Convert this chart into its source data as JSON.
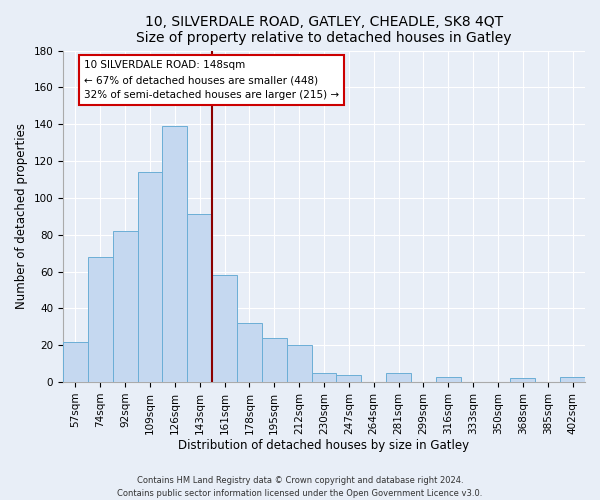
{
  "title": "10, SILVERDALE ROAD, GATLEY, CHEADLE, SK8 4QT",
  "subtitle": "Size of property relative to detached houses in Gatley",
  "xlabel": "Distribution of detached houses by size in Gatley",
  "ylabel": "Number of detached properties",
  "bar_labels": [
    "57sqm",
    "74sqm",
    "92sqm",
    "109sqm",
    "126sqm",
    "143sqm",
    "161sqm",
    "178sqm",
    "195sqm",
    "212sqm",
    "230sqm",
    "247sqm",
    "264sqm",
    "281sqm",
    "299sqm",
    "316sqm",
    "333sqm",
    "350sqm",
    "368sqm",
    "385sqm",
    "402sqm"
  ],
  "bar_values": [
    22,
    68,
    82,
    114,
    139,
    91,
    58,
    32,
    24,
    20,
    5,
    4,
    0,
    5,
    0,
    3,
    0,
    0,
    2,
    0,
    3
  ],
  "bar_color": "#c5d8f0",
  "bar_edge_color": "#6baed6",
  "annotation_title": "10 SILVERDALE ROAD: 148sqm",
  "annotation_line1": "← 67% of detached houses are smaller (448)",
  "annotation_line2": "32% of semi-detached houses are larger (215) →",
  "annotation_box_color": "#ffffff",
  "annotation_box_edge": "#cc0000",
  "vline_color": "#8b0000",
  "ylim": [
    0,
    180
  ],
  "yticks": [
    0,
    20,
    40,
    60,
    80,
    100,
    120,
    140,
    160,
    180
  ],
  "footnote1": "Contains HM Land Registry data © Crown copyright and database right 2024.",
  "footnote2": "Contains public sector information licensed under the Open Government Licence v3.0.",
  "bg_color": "#e8eef7",
  "grid_color": "#ffffff",
  "title_fontsize": 10,
  "subtitle_fontsize": 9,
  "axis_label_fontsize": 8.5,
  "tick_fontsize": 7.5,
  "footnote_fontsize": 6
}
